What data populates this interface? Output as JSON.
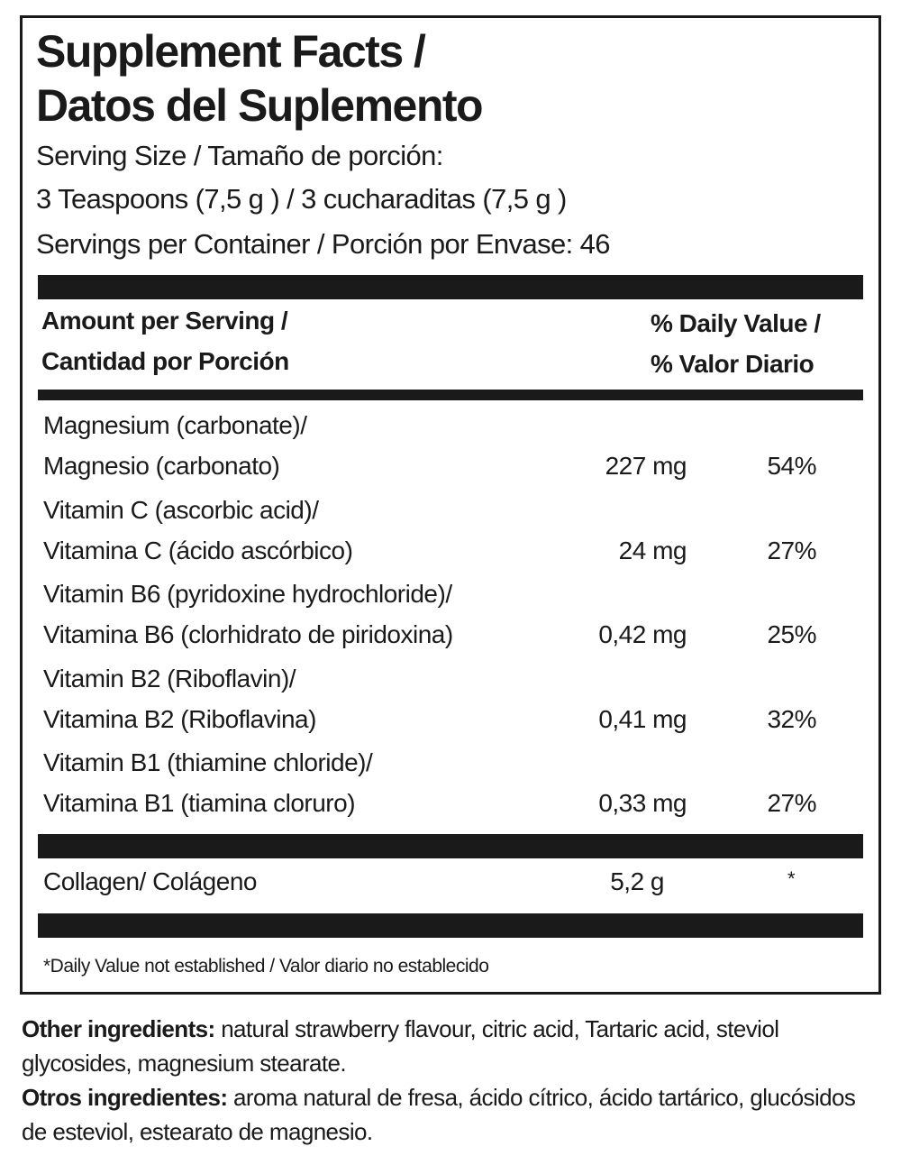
{
  "title": [
    "Supplement Facts /",
    "Datos del Suplemento"
  ],
  "serving": [
    "Serving Size / Tamaño de porción:",
    "3 Teaspoons (7,5 g ) / 3 cucharaditas (7,5 g )",
    "Servings per Container / Porción por Envase: 46"
  ],
  "header": {
    "amount": [
      "Amount per Serving /",
      "Cantidad por Porción"
    ],
    "daily_value": [
      "% Daily Value /",
      "% Valor Diario"
    ]
  },
  "rows": [
    {
      "name": [
        "Magnesium (carbonate)/",
        "Magnesio (carbonato)"
      ],
      "amount": "227 mg",
      "dv": "54%"
    },
    {
      "name": [
        "Vitamin C (ascorbic acid)/",
        "Vitamina C (ácido ascórbico)"
      ],
      "amount": "24 mg",
      "dv": "27%"
    },
    {
      "name": [
        "Vitamin B6 (pyridoxine hydrochloride)/",
        "Vitamina B6 (clorhidrato de piridoxina)"
      ],
      "amount": "0,42 mg",
      "dv": "25%"
    },
    {
      "name": [
        "Vitamin B2 (Riboflavin)/",
        "Vitamina B2 (Riboflavina)"
      ],
      "amount": "0,41 mg",
      "dv": "32%"
    },
    {
      "name": [
        "Vitamin B1 (thiamine chloride)/",
        "Vitamina B1 (tiamina cloruro)"
      ],
      "amount": "0,33 mg",
      "dv": "27%"
    }
  ],
  "collagen": {
    "name": "Collagen/ Colágeno",
    "amount": "5,2 g",
    "dv": "*"
  },
  "footnote": "*Daily Value not established / Valor diario no establecido",
  "other_ingredients": {
    "label": "Other ingredients:",
    "text": "natural strawberry flavour, citric acid, Tartaric acid, steviol glycosides, magnesium stearate."
  },
  "otros_ingredientes": {
    "label": "Otros ingredientes:",
    "text": "aroma natural de fresa, ácido cítrico, ácido tartárico, glucósidos de esteviol, estearato de magnesio."
  }
}
